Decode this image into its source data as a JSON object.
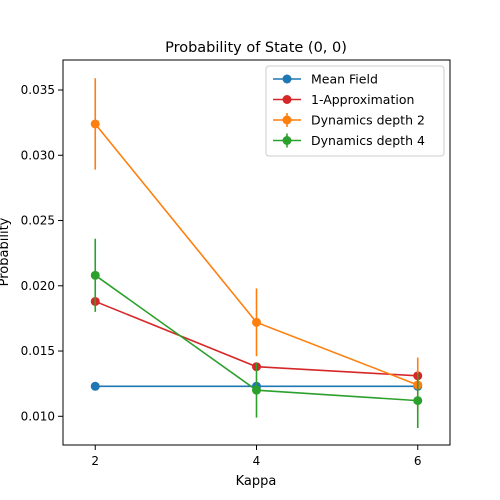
{
  "chart_data": {
    "type": "line",
    "title": "Probability of State (0, 0)",
    "xlabel": "Kappa",
    "ylabel": "Probability",
    "xlim": [
      1.6,
      6.4
    ],
    "ylim": [
      0.0078,
      0.0373
    ],
    "x_ticks": [
      2,
      4,
      6
    ],
    "y_ticks": [
      0.01,
      0.015,
      0.02,
      0.025,
      0.03,
      0.035
    ],
    "y_tick_labels": [
      "0.010",
      "0.015",
      "0.020",
      "0.025",
      "0.030",
      "0.035"
    ],
    "grid": false,
    "legend_position": "top-right",
    "series": [
      {
        "name": "Mean Field",
        "color": "#1f77b4",
        "x": [
          2,
          4,
          6
        ],
        "values": [
          0.0123,
          0.0123,
          0.0123
        ]
      },
      {
        "name": "1-Approximation",
        "color": "#d62728",
        "x": [
          2,
          4,
          6
        ],
        "values": [
          0.0188,
          0.0138,
          0.0131
        ]
      },
      {
        "name": "Dynamics depth 2",
        "color": "#ff7f0e",
        "x": [
          2,
          4,
          6
        ],
        "values": [
          0.0324,
          0.0172,
          0.0124
        ],
        "error": [
          [
            0.0289,
            0.0359
          ],
          [
            0.0146,
            0.0198
          ],
          [
            0.0103,
            0.0145
          ]
        ]
      },
      {
        "name": "Dynamics depth 4",
        "color": "#2ca02c",
        "x": [
          2,
          4,
          6
        ],
        "values": [
          0.0208,
          0.012,
          0.0112
        ],
        "error": [
          [
            0.018,
            0.0236
          ],
          [
            0.0099,
            0.0141
          ],
          [
            0.0091,
            0.0133
          ]
        ]
      }
    ]
  }
}
